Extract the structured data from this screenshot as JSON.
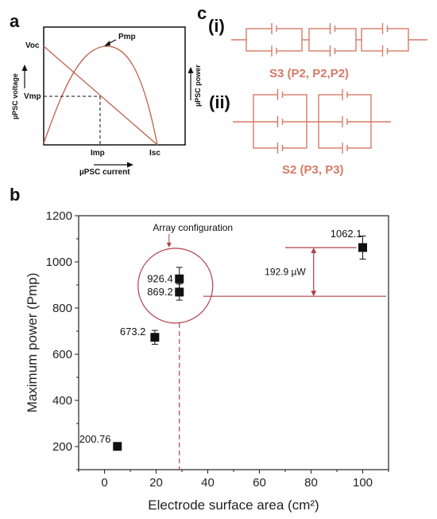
{
  "panels": {
    "a": "a",
    "b": "b",
    "c": "c"
  },
  "panel_a": {
    "voc": "Voc",
    "vmp": "Vmp",
    "pmp": "Pmp",
    "imp": "Imp",
    "isc": "Isc",
    "y_left": "µPSC voltage",
    "y_right": "µPSC power",
    "x_label": "µPSC current",
    "curve_color": "#c0604a"
  },
  "panel_c": {
    "i_label": "(i)",
    "ii_label": "(ii)",
    "s3": "S3 (P2, P2,P2)",
    "s2": "S2 (P3, P3)",
    "color": "#d77a66"
  },
  "chart_data": {
    "type": "scatter",
    "xlabel": "Electrode surface area (cm²)",
    "ylabel": "Maximum power (Pmp)",
    "xlim": [
      -10,
      110
    ],
    "ylim": [
      100,
      1200
    ],
    "xticks": [
      "0",
      "20",
      "40",
      "60",
      "80",
      "100"
    ],
    "yticks": [
      "200",
      "400",
      "600",
      "800",
      "1000",
      "1200"
    ],
    "points": [
      {
        "x": 5,
        "y": 200.76,
        "err": 0,
        "label": "200.76"
      },
      {
        "x": 19.5,
        "y": 673.2,
        "err": 30,
        "label": "673.2"
      },
      {
        "x": 29,
        "y": 869.2,
        "err": 35,
        "label": "869.2"
      },
      {
        "x": 29,
        "y": 926.4,
        "err": 50,
        "label": "926.4"
      },
      {
        "x": 100,
        "y": 1062.1,
        "err": 50,
        "label": "1062.1"
      }
    ],
    "annotations": {
      "array_configuration": "Array configuration",
      "difference": "192.9 µW"
    },
    "accent_color": "#b0404a"
  }
}
